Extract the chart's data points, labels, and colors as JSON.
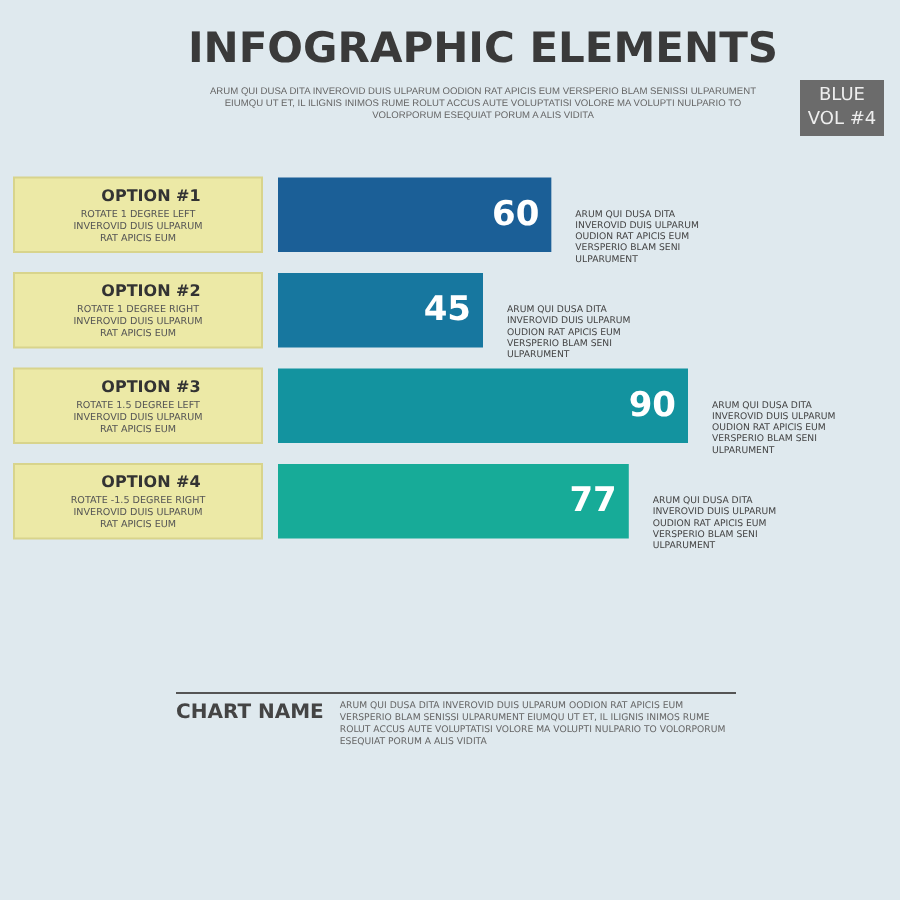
{
  "chart_data": {
    "type": "bar",
    "orientation": "horizontal",
    "title": "INFOGRAPHIC ELEMENTS",
    "subtitle": "ARUM QUI DUSA DITA INVEROVID DUIS ULPARUM OODION RAT APICIS EUM VERSPERIO BLAM SENISSI ULPARUMENT EIUMQU UT ET, IL ILIGNIS INIMOS RUME ROLUT ACCUS AUTE VOLUPTATISI VOLORE MA VOLUPTI NULPARIO TO VOLORPORUM ESEQUIAT PORUM A ALIS VIDITA",
    "categories": [
      "OPTION #1",
      "OPTION #2",
      "OPTION #3",
      "OPTION #4"
    ],
    "values": [
      60,
      45,
      90,
      77
    ],
    "colors": [
      "#1b5f97",
      "#17779f",
      "#13939f",
      "#17ab98"
    ],
    "data_labels": true,
    "tick_labels": "y",
    "annotations": [
      "BLUE VOL #4",
      "CHART NAME",
      "ARUM QUI DUSA DITA INVEROVID DUIS ULPARUM OODION RAT APICIS EUM VERSPERIO BLAM SENISSI ULPARUMENT EIUMQU UT ET, IL ILIGNIS INIMOS RUME ROLUT ACCUS AUTE VOLUPTATISI VOLORE MA VOLUPTI NULPARIO TO VOLORPORUM ESEQUIAT PORUM A ALIS VIDITA",
      "ROTATE 1 DEGREE LEFT INVEROVID DUIS ULPARUM RAT APICIS EUM",
      "ROTATE 1 DEGREE RIGHT INVEROVID DUIS ULPARUM RAT APICIS EUM",
      "ROTATE 1.5 DEGREE LEFT INVEROVID DUIS ULPARUM RAT APICIS EUM",
      "ROTATE -1.5 DEGREE RIGHT INVEROVID DUIS ULPARUM RAT APICIS EUM",
      {
        "text": "ARUM QUI DUSA DITA INVEROVID DUIS ULPARUM OUDION RAT APICIS EUM VERSPERIO BLAM SENI ULPARUMENT",
        "x": 60,
        "y": "OPTION #1"
      },
      {
        "text": "ARUM QUI DUSA DITA INVEROVID DUIS ULPARUM OUDION RAT APICIS EUM VERSPERIO BLAM SENI ULPARUMENT",
        "x": 45,
        "y": "OPTION #2"
      },
      {
        "text": "ARUM QUI DUSA DITA INVEROVID DUIS ULPARUM OUDION RAT APICIS EUM VERSPERIO BLAM SENI ULPARUMENT",
        "x": 90,
        "y": "OPTION #3"
      },
      {
        "text": "ARUM QUI DUSA DITA INVEROVID DUIS ULPARUM OUDION RAT APICIS EUM VERSPERIO BLAM SENI ULPARUMENT",
        "x": 77,
        "y": "OPTION #4"
      }
    ]
  }
}
